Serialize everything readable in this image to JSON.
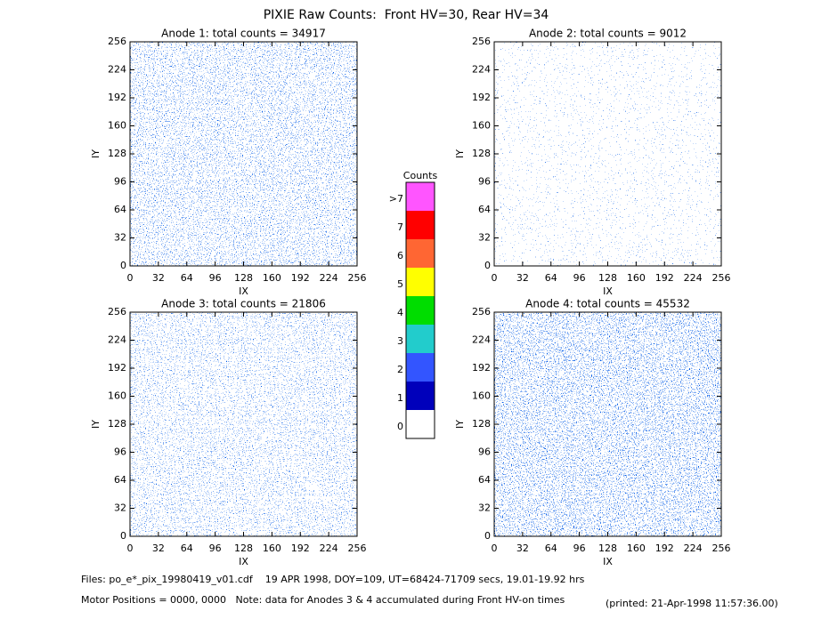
{
  "title": "PIXIE Raw Counts:  Front HV=30, Rear HV=34",
  "chart_data": [
    {
      "type": "heatmap",
      "title": "Anode 1: total counts = 34917",
      "xlabel": "IX",
      "ylabel": "IY",
      "xlim": [
        0,
        256
      ],
      "ylim": [
        0,
        256
      ],
      "xticks": [
        0,
        32,
        64,
        96,
        128,
        160,
        192,
        224,
        256
      ],
      "yticks": [
        0,
        32,
        64,
        96,
        128,
        160,
        192,
        224,
        256
      ]
    },
    {
      "type": "heatmap",
      "title": "Anode 2: total counts = 9012",
      "xlabel": "IX",
      "ylabel": "IY",
      "xlim": [
        0,
        256
      ],
      "ylim": [
        0,
        256
      ],
      "xticks": [
        0,
        32,
        64,
        96,
        128,
        160,
        192,
        224,
        256
      ],
      "yticks": [
        0,
        32,
        64,
        96,
        128,
        160,
        192,
        224,
        256
      ]
    },
    {
      "type": "heatmap",
      "title": "Anode 3: total counts = 21806",
      "xlabel": "IX",
      "ylabel": "IY",
      "xlim": [
        0,
        256
      ],
      "ylim": [
        0,
        256
      ],
      "xticks": [
        0,
        32,
        64,
        96,
        128,
        160,
        192,
        224,
        256
      ],
      "yticks": [
        0,
        32,
        64,
        96,
        128,
        160,
        192,
        224,
        256
      ]
    },
    {
      "type": "heatmap",
      "title": "Anode 4: total counts = 45532",
      "xlabel": "IX",
      "ylabel": "IY",
      "xlim": [
        0,
        256
      ],
      "ylim": [
        0,
        256
      ],
      "xticks": [
        0,
        32,
        64,
        96,
        128,
        160,
        192,
        224,
        256
      ],
      "yticks": [
        0,
        32,
        64,
        96,
        128,
        160,
        192,
        224,
        256
      ]
    }
  ],
  "colorbar": {
    "title": "Counts",
    "labels": [
      0,
      1,
      2,
      3,
      4,
      5,
      6,
      7,
      ">7"
    ],
    "colors": [
      "#ffffff",
      "#0000bb",
      "#3355ff",
      "#22cccc",
      "#00dd00",
      "#ffff00",
      "#ff6633",
      "#ff0000",
      "#ff55ff"
    ]
  },
  "footer": {
    "files": "Files: po_e*_pix_19980419_v01.cdf    19 APR 1998, DOY=109, UT=68424-71709 secs, 19.01-19.92 hrs",
    "motor": "Motor Positions = 0000, 0000   Note: data for Anodes 3 & 4 accumulated during Front HV-on times",
    "printed": "(printed: 21-Apr-1998 11:57:36.00)"
  }
}
